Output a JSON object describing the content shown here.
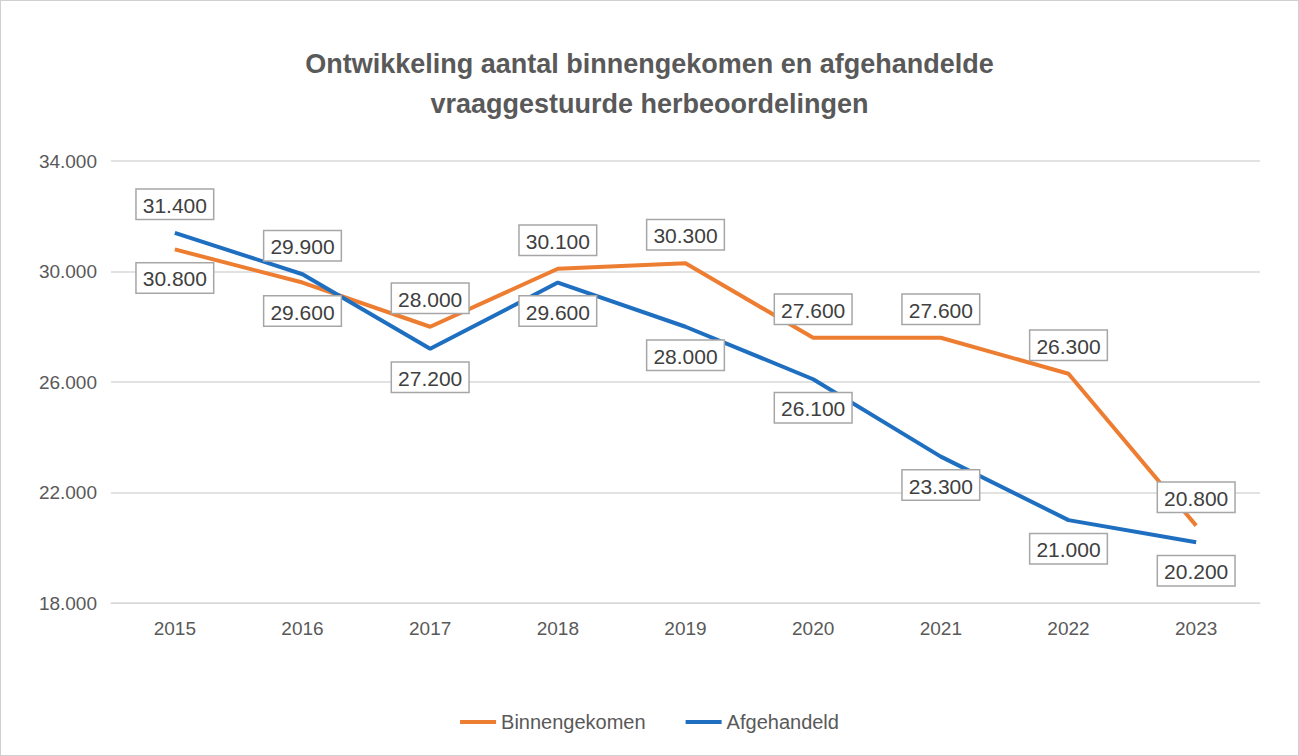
{
  "chart_data": {
    "type": "line",
    "title": "Ontwikkeling aantal binnengekomen en afgehandelde\nvraaggestuurde herbeoordelingen",
    "categories": [
      "2015",
      "2016",
      "2017",
      "2018",
      "2019",
      "2020",
      "2021",
      "2022",
      "2023"
    ],
    "series": [
      {
        "name": "Binnengekomen",
        "color": "#ED7D31",
        "values": [
          30800,
          29600,
          28000,
          30100,
          30300,
          27600,
          27600,
          26300,
          20800
        ],
        "value_labels": [
          "30.800",
          "29.600",
          "28.000",
          "30.100",
          "30.300",
          "27.600",
          "27.600",
          "26.300",
          "20.800"
        ]
      },
      {
        "name": "Afgehandeld",
        "color": "#1F6FC1",
        "values": [
          31400,
          29900,
          27200,
          29600,
          28000,
          26100,
          23300,
          21000,
          20200
        ],
        "value_labels": [
          "31.400",
          "29.900",
          "27.200",
          "29.600",
          "28.000",
          "26.100",
          "23.300",
          "21.000",
          "20.200"
        ]
      }
    ],
    "ylim": [
      18000,
      34000
    ],
    "yticks": [
      {
        "value": 18000,
        "label": "18.000"
      },
      {
        "value": 22000,
        "label": "22.000"
      },
      {
        "value": 26000,
        "label": "26.000"
      },
      {
        "value": 30000,
        "label": "30.000"
      },
      {
        "value": 34000,
        "label": "34.000"
      }
    ],
    "grid": true,
    "legend": "bottom",
    "data_labels": true
  }
}
